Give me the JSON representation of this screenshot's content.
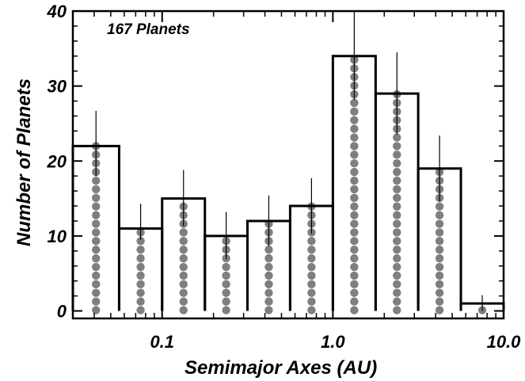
{
  "chart_data": {
    "type": "bar",
    "x_scale": "log",
    "xlabel": "Semimajor Axes   (AU)",
    "ylabel": "Number of Planets",
    "xlim": [
      0.03,
      10.0
    ],
    "ylim": [
      -1,
      40
    ],
    "x_ticks": [
      {
        "value": 0.1,
        "label": "0.1"
      },
      {
        "value": 1.0,
        "label": "1.0"
      },
      {
        "value": 10.0,
        "label": "10.0"
      }
    ],
    "y_ticks": [
      {
        "value": 0,
        "label": "0"
      },
      {
        "value": 10,
        "label": "10"
      },
      {
        "value": 20,
        "label": "20"
      },
      {
        "value": 30,
        "label": "30"
      },
      {
        "value": 40,
        "label": "40"
      }
    ],
    "annotation": "167 Planets",
    "bins": [
      {
        "x_from": 0.03,
        "x_to": 0.056,
        "value": 22,
        "err_low": 18,
        "err_high": 26.7
      },
      {
        "x_from": 0.056,
        "x_to": 0.1,
        "value": 11,
        "err_low": 9.5,
        "err_high": 14.3
      },
      {
        "x_from": 0.1,
        "x_to": 0.178,
        "value": 15,
        "err_low": 11.3,
        "err_high": 18.8
      },
      {
        "x_from": 0.178,
        "x_to": 0.316,
        "value": 10,
        "err_low": 6.9,
        "err_high": 13.2
      },
      {
        "x_from": 0.316,
        "x_to": 0.562,
        "value": 12,
        "err_low": 8.6,
        "err_high": 15.4
      },
      {
        "x_from": 0.562,
        "x_to": 1.0,
        "value": 14,
        "err_low": 10.3,
        "err_high": 17.7
      },
      {
        "x_from": 1.0,
        "x_to": 1.78,
        "value": 34,
        "err_low": 28.2,
        "err_high": 40
      },
      {
        "x_from": 1.78,
        "x_to": 3.16,
        "value": 29,
        "err_low": 23.5,
        "err_high": 34.5
      },
      {
        "x_from": 3.16,
        "x_to": 5.62,
        "value": 19,
        "err_low": 14.6,
        "err_high": 23.4
      },
      {
        "x_from": 5.62,
        "x_to": 10.0,
        "value": 1,
        "err_low": 0,
        "err_high": 2.1
      }
    ],
    "colors": {
      "outline": "#000000",
      "dots": "#7f7f7f",
      "errorbar": "#000000"
    }
  }
}
